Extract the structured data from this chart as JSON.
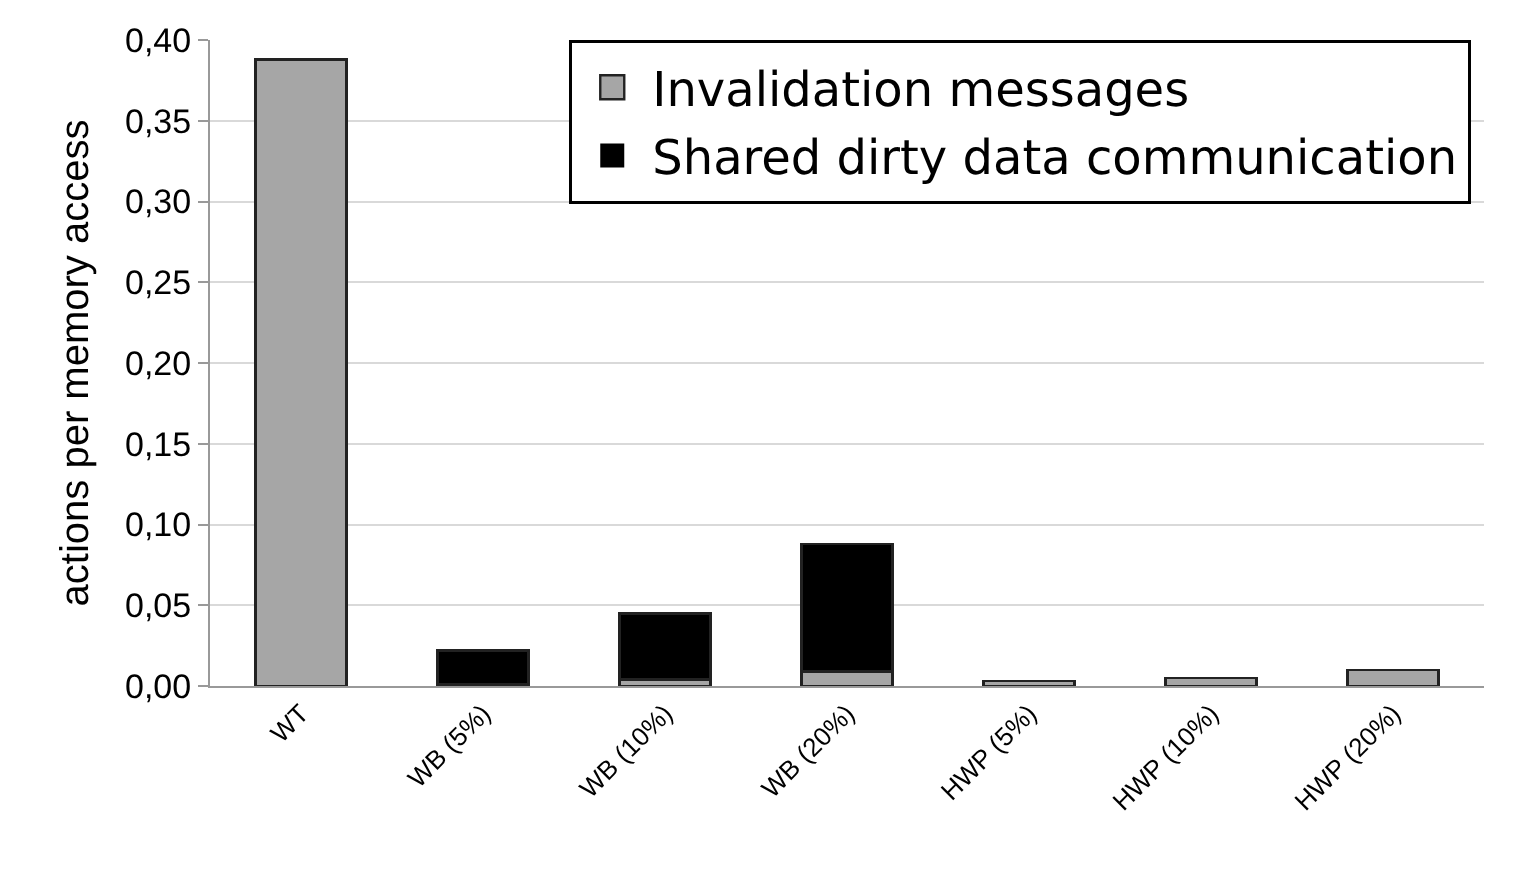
{
  "chart_data": {
    "type": "bar",
    "stacked": true,
    "ylabel": "actions per memory access",
    "categories": [
      "WT",
      "WB (5%)",
      "WB (10%)",
      "WB (20%)",
      "HWP (5%)",
      "HWP (10%)",
      "HWP (20%)"
    ],
    "series": [
      {
        "name": "Invalidation messages",
        "color": "#a6a6a6",
        "values": [
          0.388,
          0.001,
          0.004,
          0.009,
          0.003,
          0.005,
          0.01
        ]
      },
      {
        "name": "Shared dirty data communication",
        "color": "#000000",
        "values": [
          0,
          0.021,
          0.041,
          0.079,
          0,
          0,
          0
        ]
      }
    ],
    "ylim": [
      0,
      0.4
    ],
    "yticks": [
      {
        "value": 0,
        "label": "0,00"
      },
      {
        "value": 0.05,
        "label": "0,05"
      },
      {
        "value": 0.1,
        "label": "0,10"
      },
      {
        "value": 0.15,
        "label": "0,15"
      },
      {
        "value": 0.2,
        "label": "0,20"
      },
      {
        "value": 0.25,
        "label": "0,25"
      },
      {
        "value": 0.3,
        "label": "0,30"
      },
      {
        "value": 0.35,
        "label": "0,35"
      },
      {
        "value": 0.4,
        "label": "0,40"
      }
    ],
    "grid": "y",
    "legend": "top right"
  }
}
